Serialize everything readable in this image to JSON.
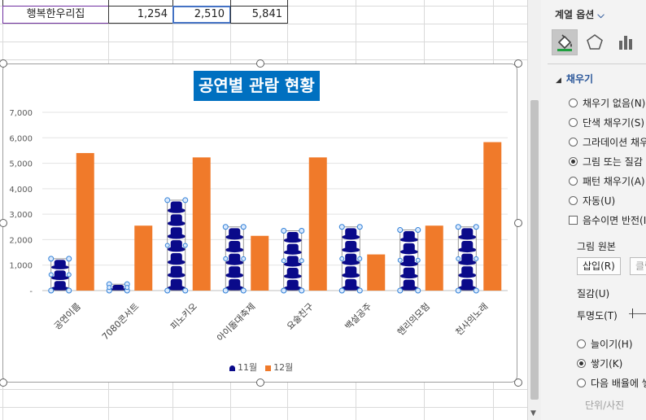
{
  "table": {
    "name": "행복한우리집",
    "values": [
      "1,254",
      "2,510",
      "5,841"
    ]
  },
  "chart_data": {
    "type": "bar",
    "title": "공연별 관람 현황",
    "categories": [
      "공연이름",
      "7080콘서트",
      "피노키오",
      "아이돌대축제",
      "요술친구",
      "백설공주",
      "헨리의모험",
      "천사의노래"
    ],
    "series": [
      {
        "name": "11월",
        "values": [
          1250,
          250,
          3550,
          2500,
          2350,
          2500,
          2380,
          2500
        ],
        "color": "#0a0a8a"
      },
      {
        "name": "12월",
        "values": [
          5400,
          2550,
          5230,
          2150,
          5230,
          1420,
          2550,
          5830
        ],
        "color": "#f07a2a"
      }
    ],
    "yticks": [
      "-",
      "1,000",
      "2,000",
      "3,000",
      "4,000",
      "5,000",
      "6,000",
      "7,000"
    ],
    "ylim": [
      0,
      7000
    ],
    "grid": true,
    "legend": "bottom"
  },
  "pane": {
    "title": "계열 옵션",
    "section": "채우기",
    "options": [
      {
        "label": "채우기 없음(N)",
        "kind": "radio",
        "checked": false
      },
      {
        "label": "단색 채우기(S)",
        "kind": "radio",
        "checked": false
      },
      {
        "label": "그라데이션 채우기(G)",
        "kind": "radio",
        "checked": false
      },
      {
        "label": "그림 또는 질감 채우기(P)",
        "kind": "radio",
        "checked": true
      },
      {
        "label": "패턴 채우기(A)",
        "kind": "radio",
        "checked": false
      },
      {
        "label": "자동(U)",
        "kind": "radio",
        "checked": false
      },
      {
        "label": "음수이면 반전(I)",
        "kind": "checkbox",
        "checked": false
      }
    ],
    "picture_source": "그림 원본",
    "insert_button": "삽입(R)",
    "clipboard_button": "클립보드(C)",
    "texture": "질감(U)",
    "transparency": "투명도(T)",
    "stack_options": [
      {
        "label": "늘이기(H)",
        "checked": false
      },
      {
        "label": "쌓기(K)",
        "checked": true
      },
      {
        "label": "다음 배율에 쌓기(W)",
        "checked": false
      }
    ],
    "unit_label": "단위/사진"
  }
}
